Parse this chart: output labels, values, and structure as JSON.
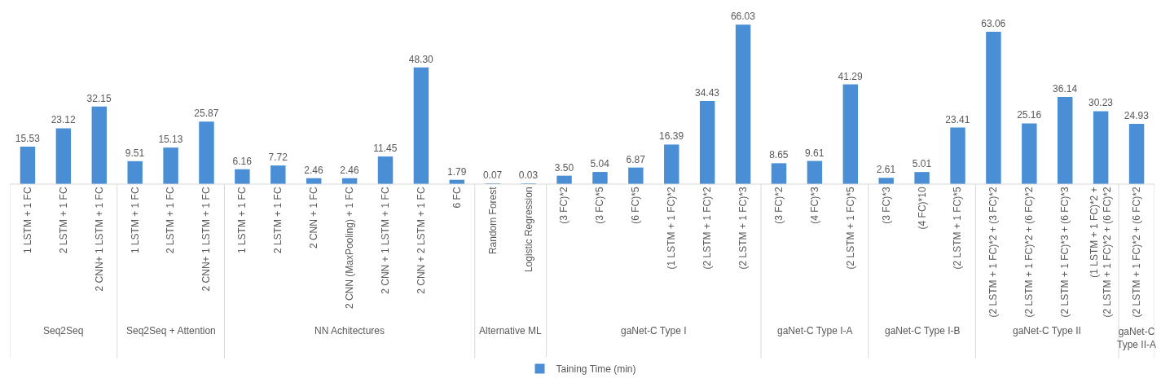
{
  "chart_data": {
    "type": "bar",
    "categories": [
      "1 LSTM + 1 FC",
      "2 LSTM + 1 FC",
      "2 CNN+ 1 LSTM + 1 FC",
      "1 LSTM + 1 FC",
      "2 LSTM + 1 FC",
      "2 CNN+ 1 LSTM + 1 FC",
      "1 LSTM + 1 FC",
      "2 LSTM + 1 FC",
      "2 CNN + 1 FC",
      "2 CNN (MaxPooling) + 1 FC",
      "2 CNN + 1 LSTM + 1 FC",
      "2 CNN + 2 LSTM + 1 FC",
      "6 FC",
      "Random Forest",
      "Logistic Regression",
      "(3 FC)*2",
      "(3 FC)*5",
      "(6 FC)*5",
      "(1 LSTM + 1 FC)*2",
      "(2 LSTM + 1 FC)*2",
      "(2 LSTM + 1 FC)*3",
      "(3 FC)*2",
      "(4 FC)*3",
      "(2 LSTM + 1 FC)*5",
      "(3 FC)*3",
      "(4 FC)*10",
      "(2 LSTM + 1 FC)*5",
      "(2 LSTM + 1 FC)*2 + (3 FC)*2",
      "(2 LSTM + 1 FC)*2 + (6 FC)*2",
      "(2 LSTM + 1 FC)*3 + (6 FC)*3",
      "(1 LSTM + 1 FC)*2 + (2 LSTM + 1 FC)*2 + (6 FC)*2",
      "(2 LSTM + 1 FC)*2 + (6 FC)*2"
    ],
    "series": [
      {
        "name": "Taining Time (min)",
        "color": "#4a8fd6",
        "values": [
          15.53,
          23.12,
          32.15,
          9.51,
          15.13,
          25.87,
          6.16,
          7.72,
          2.46,
          2.46,
          11.45,
          48.3,
          1.79,
          0.07,
          0.03,
          3.5,
          5.04,
          6.87,
          16.39,
          34.43,
          66.03,
          8.65,
          9.61,
          41.29,
          2.61,
          5.01,
          23.41,
          63.06,
          25.16,
          36.14,
          30.23,
          24.93
        ],
        "value_labels": [
          "15.53",
          "23.12",
          "32.15",
          "9.51",
          "15.13",
          "25.87",
          "6.16",
          "7.72",
          "2.46",
          "2.46",
          "11.45",
          "48.30",
          "1.79",
          "0.07",
          "0.03",
          "3.50",
          "5.04",
          "6.87",
          "16.39",
          "34.43",
          "66.03",
          "8.65",
          "9.61",
          "41.29",
          "2.61",
          "5.01",
          "23.41",
          "63.06",
          "25.16",
          "36.14",
          "30.23",
          "24.93"
        ]
      }
    ],
    "annotations": [
      "Seq2Seq",
      "Seq2Seq + Attention",
      "NN Achitectures",
      "Alternative ML",
      "gaNet-C Type I",
      "gaNet-C Type I-A",
      "gaNet-C Type I-B",
      "gaNet-C Type II",
      "gaNet-C Type II-A"
    ],
    "legend": "bottom"
  }
}
